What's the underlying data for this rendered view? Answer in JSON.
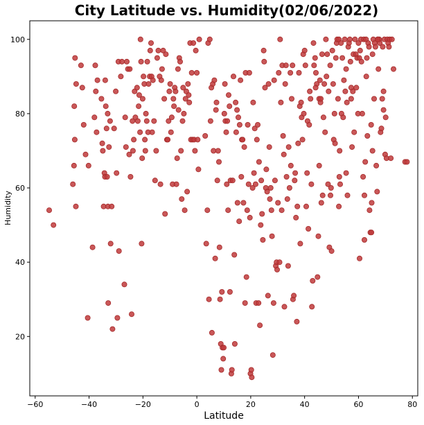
{
  "chart_data": {
    "type": "scatter",
    "title": "City Latitude vs. Humidity(02/06/2022)",
    "xlabel": "Latitude",
    "ylabel": "Humidity",
    "xlim": [
      -62,
      82
    ],
    "ylim": [
      4,
      105
    ],
    "xticks": [
      -60,
      -40,
      -20,
      0,
      20,
      40,
      60,
      80
    ],
    "yticks": [
      20,
      40,
      60,
      80,
      100
    ],
    "grid": false,
    "marker_color": "#c0393b",
    "marker_edge": "#a52a2a",
    "points": [
      [
        -54.8,
        54
      ],
      [
        -53.2,
        50
      ],
      [
        -46,
        61
      ],
      [
        -45.6,
        66
      ],
      [
        -45.5,
        82
      ],
      [
        -45.3,
        73
      ],
      [
        -45.2,
        95
      ],
      [
        -44.8,
        88
      ],
      [
        -44.9,
        55
      ],
      [
        -43,
        93
      ],
      [
        -42.5,
        87
      ],
      [
        -42,
        77
      ],
      [
        -41.3,
        69
      ],
      [
        -40.5,
        25
      ],
      [
        -40.2,
        66
      ],
      [
        -38.7,
        44
      ],
      [
        -38,
        79
      ],
      [
        -37.7,
        93
      ],
      [
        -37.5,
        86
      ],
      [
        -37.2,
        75
      ],
      [
        -36.9,
        89
      ],
      [
        -35.4,
        84
      ],
      [
        -35.1,
        72
      ],
      [
        -34.9,
        70
      ],
      [
        -34.6,
        55
      ],
      [
        -34.3,
        64
      ],
      [
        -34.1,
        63
      ],
      [
        -34.0,
        89
      ],
      [
        -33.8,
        82
      ],
      [
        -33.5,
        76
      ],
      [
        -33.3,
        63
      ],
      [
        -33.1,
        80
      ],
      [
        -33.0,
        55
      ],
      [
        -32.9,
        29
      ],
      [
        -32.6,
        71
      ],
      [
        -32.2,
        78
      ],
      [
        -32.0,
        45
      ],
      [
        -31.6,
        55
      ],
      [
        -31.3,
        22
      ],
      [
        -30.7,
        76
      ],
      [
        -30.1,
        86
      ],
      [
        -29.8,
        64
      ],
      [
        -29.5,
        25
      ],
      [
        -29.1,
        94
      ],
      [
        -28.9,
        43
      ],
      [
        -28.2,
        90
      ],
      [
        -27.8,
        94
      ],
      [
        -26.9,
        34
      ],
      [
        -26.6,
        79
      ],
      [
        -26.3,
        71
      ],
      [
        -26.0,
        94
      ],
      [
        -25.6,
        92
      ],
      [
        -25.1,
        69
      ],
      [
        -24.9,
        92
      ],
      [
        -24.6,
        63
      ],
      [
        -24.2,
        26
      ],
      [
        -23.9,
        78
      ],
      [
        -23.7,
        70
      ],
      [
        -23.4,
        73
      ],
      [
        -23.1,
        86
      ],
      [
        -22.8,
        79
      ],
      [
        -22.2,
        87
      ],
      [
        -21.9,
        78
      ],
      [
        -21.6,
        82
      ],
      [
        -21.4,
        85
      ],
      [
        -21.1,
        75
      ],
      [
        -20.9,
        100
      ],
      [
        -20.7,
        94
      ],
      [
        -20.5,
        45
      ],
      [
        -20.3,
        68
      ],
      [
        -20.1,
        84
      ],
      [
        -19.8,
        90
      ],
      [
        -19.5,
        88
      ],
      [
        -19.3,
        73
      ],
      [
        -19.1,
        70
      ],
      [
        -18.9,
        80
      ],
      [
        -18.6,
        78
      ],
      [
        -18.4,
        94
      ],
      [
        -18.1,
        75
      ],
      [
        -17.9,
        88
      ],
      [
        -17.5,
        90
      ],
      [
        -17.3,
        97
      ],
      [
        -17.0,
        99
      ],
      [
        -16.8,
        90
      ],
      [
        -16.6,
        75
      ],
      [
        -16.3,
        89
      ],
      [
        -15.9,
        78
      ],
      [
        -15.5,
        62
      ],
      [
        -15.1,
        70
      ],
      [
        -14.7,
        95
      ],
      [
        -14.3,
        97
      ],
      [
        -13.8,
        90
      ],
      [
        -13.5,
        61
      ],
      [
        -13.2,
        89
      ],
      [
        -12.9,
        92
      ],
      [
        -12.5,
        97
      ],
      [
        -12.1,
        84
      ],
      [
        -11.8,
        53
      ],
      [
        -11.5,
        96
      ],
      [
        -11.1,
        73
      ],
      [
        -10.8,
        73
      ],
      [
        -10.5,
        78
      ],
      [
        -10.2,
        86
      ],
      [
        -9.9,
        88
      ],
      [
        -9.6,
        75
      ],
      [
        -9.3,
        79
      ],
      [
        -9.0,
        61
      ],
      [
        -8.7,
        84
      ],
      [
        -8.5,
        82
      ],
      [
        -8.2,
        87
      ],
      [
        -7.9,
        86
      ],
      [
        -7.6,
        61
      ],
      [
        -7.3,
        68
      ],
      [
        -7.0,
        92
      ],
      [
        -6.8,
        81
      ],
      [
        -6.5,
        95
      ],
      [
        -6.2,
        94
      ],
      [
        -5.9,
        70
      ],
      [
        -5.6,
        57
      ],
      [
        -5.3,
        78
      ],
      [
        -5.1,
        87
      ],
      [
        -4.8,
        80
      ],
      [
        -4.5,
        54
      ],
      [
        -4.2,
        84
      ],
      [
        -3.9,
        86
      ],
      [
        -3.6,
        59
      ],
      [
        -3.3,
        88
      ],
      [
        -3.0,
        85
      ],
      [
        -2.8,
        83
      ],
      [
        -2.5,
        99
      ],
      [
        -2.2,
        73
      ],
      [
        -1.9,
        91
      ],
      [
        -1.6,
        73
      ],
      [
        -1.3,
        99
      ],
      [
        -1.0,
        73
      ],
      [
        -0.7,
        70
      ],
      [
        -0.4,
        97
      ],
      [
        0.0,
        91
      ],
      [
        0.3,
        73
      ],
      [
        0.6,
        65
      ],
      [
        0.9,
        100
      ],
      [
        3.1,
        74
      ],
      [
        3.5,
        45
      ],
      [
        3.9,
        54
      ],
      [
        4.2,
        99
      ],
      [
        4.5,
        30
      ],
      [
        4.8,
        100
      ],
      [
        5.1,
        78
      ],
      [
        5.4,
        87
      ],
      [
        5.6,
        21
      ],
      [
        5.9,
        88
      ],
      [
        6.2,
        70
      ],
      [
        6.5,
        89
      ],
      [
        6.8,
        41
      ],
      [
        7.1,
        81
      ],
      [
        7.3,
        83
      ],
      [
        7.6,
        62
      ],
      [
        7.9,
        70
      ],
      [
        8.2,
        67
      ],
      [
        8.4,
        44
      ],
      [
        8.6,
        30
      ],
      [
        8.9,
        18
      ],
      [
        9.1,
        11
      ],
      [
        9.3,
        32
      ],
      [
        9.5,
        17
      ],
      [
        9.8,
        14
      ],
      [
        10.0,
        17
      ],
      [
        10.2,
        80
      ],
      [
        10.4,
        88
      ],
      [
        10.6,
        78
      ],
      [
        10.9,
        75
      ],
      [
        11.1,
        61
      ],
      [
        11.3,
        78
      ],
      [
        11.6,
        54
      ],
      [
        11.8,
        85
      ],
      [
        12.1,
        82
      ],
      [
        12.3,
        32
      ],
      [
        12.5,
        62
      ],
      [
        12.8,
        10
      ],
      [
        13.0,
        11
      ],
      [
        13.3,
        62
      ],
      [
        13.6,
        90
      ],
      [
        13.9,
        42
      ],
      [
        14.1,
        18
      ],
      [
        14.4,
        83
      ],
      [
        14.6,
        75
      ],
      [
        14.9,
        81
      ],
      [
        15.1,
        56
      ],
      [
        15.4,
        79
      ],
      [
        15.7,
        51
      ],
      [
        15.9,
        77
      ],
      [
        16.2,
        89
      ],
      [
        16.5,
        63
      ],
      [
        16.7,
        73
      ],
      [
        17.0,
        73
      ],
      [
        17.3,
        56
      ],
      [
        17.6,
        71
      ],
      [
        17.9,
        29
      ],
      [
        18.1,
        91
      ],
      [
        18.4,
        36
      ],
      [
        18.7,
        54
      ],
      [
        18.9,
        77
      ],
      [
        19.2,
        61
      ],
      [
        19.5,
        91
      ],
      [
        19.7,
        52
      ],
      [
        19.9,
        10
      ],
      [
        20.2,
        11
      ],
      [
        20.4,
        9
      ],
      [
        20.7,
        60
      ],
      [
        20.9,
        83
      ],
      [
        21.2,
        64
      ],
      [
        21.5,
        76
      ],
      [
        21.8,
        61
      ],
      [
        22.0,
        29
      ],
      [
        22.3,
        73
      ],
      [
        22.6,
        77
      ],
      [
        22.9,
        29
      ],
      [
        23.1,
        67
      ],
      [
        23.4,
        23
      ],
      [
        23.7,
        50
      ],
      [
        23.9,
        62
      ],
      [
        24.2,
        53
      ],
      [
        24.5,
        46
      ],
      [
        24.8,
        97
      ],
      [
        25.0,
        94
      ],
      [
        25.3,
        87
      ],
      [
        25.6,
        60
      ],
      [
        25.8,
        65
      ],
      [
        26.1,
        59
      ],
      [
        26.4,
        31
      ],
      [
        26.6,
        88
      ],
      [
        26.9,
        71
      ],
      [
        27.1,
        57
      ],
      [
        27.4,
        60
      ],
      [
        27.7,
        54
      ],
      [
        27.9,
        47
      ],
      [
        28.2,
        15
      ],
      [
        28.5,
        29
      ],
      [
        28.7,
        89
      ],
      [
        29.0,
        62
      ],
      [
        29.3,
        39
      ],
      [
        29.6,
        40
      ],
      [
        29.8,
        38
      ],
      [
        30.1,
        56
      ],
      [
        30.4,
        91
      ],
      [
        30.7,
        40
      ],
      [
        30.9,
        100
      ],
      [
        31.2,
        83
      ],
      [
        31.5,
        54
      ],
      [
        31.7,
        93
      ],
      [
        32.0,
        74
      ],
      [
        32.3,
        69
      ],
      [
        32.5,
        28
      ],
      [
        32.8,
        88
      ],
      [
        33.1,
        93
      ],
      [
        33.3,
        63
      ],
      [
        33.6,
        57
      ],
      [
        33.9,
        39
      ],
      [
        34.1,
        71
      ],
      [
        34.4,
        60
      ],
      [
        34.7,
        91
      ],
      [
        34.9,
        66
      ],
      [
        35.2,
        84
      ],
      [
        35.5,
        93
      ],
      [
        35.7,
        30
      ],
      [
        36.0,
        31
      ],
      [
        36.3,
        62
      ],
      [
        36.5,
        64
      ],
      [
        36.8,
        52
      ],
      [
        37.1,
        24
      ],
      [
        37.3,
        55
      ],
      [
        37.6,
        72
      ],
      [
        37.9,
        91
      ],
      [
        38.2,
        82
      ],
      [
        38.4,
        45
      ],
      [
        38.7,
        83
      ],
      [
        38.9,
        79
      ],
      [
        39.2,
        73
      ],
      [
        39.5,
        96
      ],
      [
        39.7,
        80
      ],
      [
        40.0,
        97
      ],
      [
        40.3,
        93
      ],
      [
        40.6,
        55
      ],
      [
        40.9,
        64
      ],
      [
        41.1,
        78
      ],
      [
        41.4,
        49
      ],
      [
        41.7,
        77
      ],
      [
        41.9,
        86
      ],
      [
        42.2,
        84
      ],
      [
        42.5,
        61
      ],
      [
        42.7,
        28
      ],
      [
        43.0,
        35
      ],
      [
        43.3,
        99
      ],
      [
        43.5,
        93
      ],
      [
        43.9,
        95
      ],
      [
        44.2,
        91
      ],
      [
        44.5,
        88
      ],
      [
        44.8,
        36
      ],
      [
        45.1,
        47
      ],
      [
        45.4,
        84
      ],
      [
        45.7,
        89
      ],
      [
        45.9,
        83
      ],
      [
        46.2,
        56
      ],
      [
        46.5,
        96
      ],
      [
        46.7,
        58
      ],
      [
        47.0,
        79
      ],
      [
        47.3,
        88
      ],
      [
        47.6,
        75
      ],
      [
        47.9,
        100
      ],
      [
        48.1,
        90
      ],
      [
        48.4,
        96
      ],
      [
        48.7,
        61
      ],
      [
        48.9,
        86
      ],
      [
        49.2,
        44
      ],
      [
        49.5,
        93
      ],
      [
        49.8,
        60
      ],
      [
        50.0,
        43
      ],
      [
        50.3,
        97
      ],
      [
        50.6,
        88
      ],
      [
        50.8,
        73
      ],
      [
        51.1,
        80
      ],
      [
        51.3,
        72
      ],
      [
        51.6,
        95
      ],
      [
        51.9,
        99
      ],
      [
        52.1,
        100
      ],
      [
        52.4,
        84
      ],
      [
        52.7,
        100
      ],
      [
        52.9,
        63
      ],
      [
        53.2,
        61
      ],
      [
        53.5,
        99
      ],
      [
        53.7,
        80
      ],
      [
        54.0,
        95
      ],
      [
        54.3,
        79
      ],
      [
        54.6,
        89
      ],
      [
        54.9,
        100
      ],
      [
        55.1,
        86
      ],
      [
        55.4,
        92
      ],
      [
        55.7,
        83
      ],
      [
        55.9,
        58
      ],
      [
        56.2,
        98
      ],
      [
        56.5,
        99
      ],
      [
        56.8,
        100
      ],
      [
        57.0,
        94
      ],
      [
        57.3,
        87
      ],
      [
        57.6,
        71
      ],
      [
        57.9,
        86
      ],
      [
        58.1,
        96
      ],
      [
        58.4,
        75
      ],
      [
        58.7,
        100
      ],
      [
        59.0,
        96
      ],
      [
        59.2,
        87
      ],
      [
        59.5,
        95
      ],
      [
        59.8,
        80
      ],
      [
        60.0,
        99
      ],
      [
        60.3,
        95
      ],
      [
        60.6,
        97
      ],
      [
        60.9,
        100
      ],
      [
        61.1,
        94
      ],
      [
        61.4,
        80
      ],
      [
        61.7,
        63
      ],
      [
        62.0,
        100
      ],
      [
        62.2,
        58
      ],
      [
        62.5,
        67
      ],
      [
        62.8,
        100
      ],
      [
        63.1,
        95
      ],
      [
        63.3,
        74
      ],
      [
        63.6,
        99
      ],
      [
        63.9,
        98
      ],
      [
        64.1,
        54
      ],
      [
        64.4,
        48
      ],
      [
        64.7,
        77
      ],
      [
        64.9,
        56
      ],
      [
        65.2,
        70
      ],
      [
        65.5,
        100
      ],
      [
        65.8,
        84
      ],
      [
        66.0,
        99
      ],
      [
        66.3,
        98
      ],
      [
        66.6,
        66
      ],
      [
        66.9,
        59
      ],
      [
        67.1,
        100
      ],
      [
        67.4,
        92
      ],
      [
        67.7,
        100
      ],
      [
        67.9,
        99
      ],
      [
        68.2,
        75
      ],
      [
        68.5,
        76
      ],
      [
        68.8,
        84
      ],
      [
        69.0,
        98
      ],
      [
        69.3,
        86
      ],
      [
        69.6,
        100
      ],
      [
        69.9,
        69
      ],
      [
        70.1,
        79
      ],
      [
        70.4,
        68
      ],
      [
        70.7,
        100
      ],
      [
        71.0,
        99
      ],
      [
        71.3,
        98
      ],
      [
        71.6,
        100
      ],
      [
        72.0,
        68
      ],
      [
        72.4,
        100
      ],
      [
        73.0,
        92
      ],
      [
        77.3,
        67
      ],
      [
        78.0,
        67
      ],
      [
        60.4,
        41
      ],
      [
        62.2,
        46
      ],
      [
        64.8,
        48
      ],
      [
        55.4,
        64
      ],
      [
        52.7,
        55
      ],
      [
        49.6,
        58
      ],
      [
        45.4,
        66
      ],
      [
        44.1,
        87
      ],
      [
        46.0,
        84
      ],
      [
        53.0,
        70
      ],
      [
        57.3,
        84
      ],
      [
        62.9,
        90
      ],
      [
        65.2,
        96
      ],
      [
        67.2,
        100
      ],
      [
        69.3,
        81
      ]
    ]
  }
}
